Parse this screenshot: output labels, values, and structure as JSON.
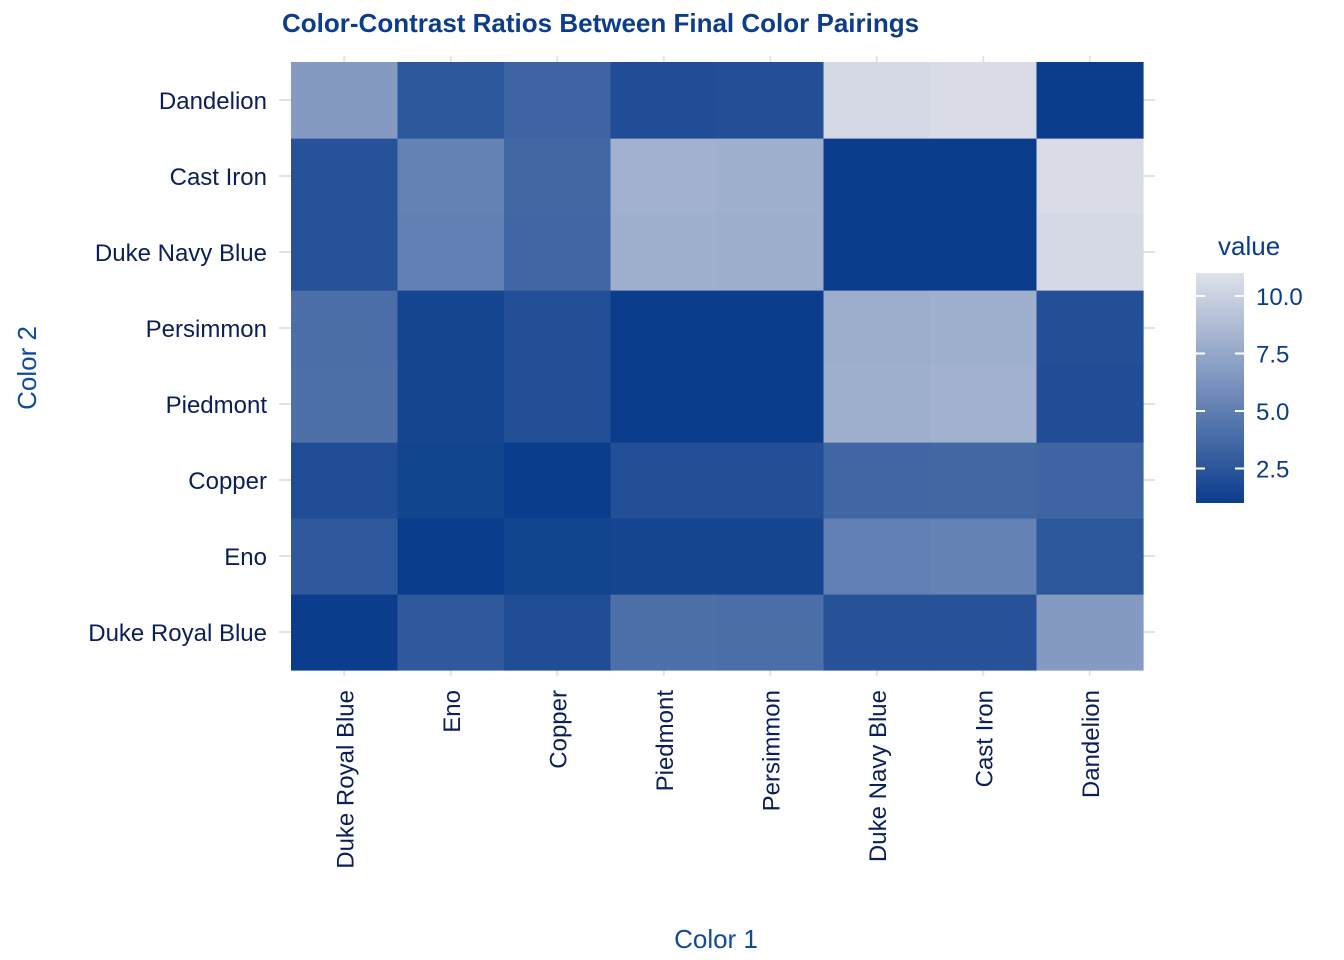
{
  "chart_data": {
    "type": "heatmap",
    "title": "Color-Contrast Ratios Between Final Color Pairings",
    "xlabel": "Color 1",
    "ylabel": "Color 2",
    "x_categories": [
      "Duke Royal Blue",
      "Eno",
      "Copper",
      "Piedmont",
      "Persimmon",
      "Duke Navy Blue",
      "Cast Iron",
      "Dandelion"
    ],
    "y_categories": [
      "Duke Royal Blue",
      "Eno",
      "Copper",
      "Piedmont",
      "Persimmon",
      "Duke Navy Blue",
      "Cast Iron",
      "Dandelion"
    ],
    "values": [
      [
        1.0,
        2.7,
        2.0,
        4.1,
        4.0,
        2.3,
        2.3,
        6.7
      ],
      [
        2.7,
        1.0,
        1.4,
        1.5,
        1.5,
        5.1,
        5.2,
        2.6
      ],
      [
        2.0,
        1.4,
        1.0,
        2.1,
        2.1,
        3.5,
        3.6,
        3.4
      ],
      [
        4.1,
        1.5,
        2.1,
        1.0,
        1.0,
        8.0,
        8.1,
        2.0
      ],
      [
        4.0,
        1.5,
        2.1,
        1.0,
        1.0,
        7.9,
        8.0,
        2.1
      ],
      [
        2.3,
        5.1,
        3.5,
        8.0,
        7.9,
        1.0,
        1.0,
        10.5
      ],
      [
        2.3,
        5.2,
        3.6,
        8.1,
        8.0,
        1.0,
        1.0,
        10.7
      ],
      [
        6.7,
        2.6,
        3.4,
        2.0,
        2.1,
        10.5,
        10.7,
        1.0
      ]
    ],
    "legend": {
      "title": "value",
      "ticks": [
        "2.5",
        "5.0",
        "7.5",
        "10.0"
      ],
      "tick_values": [
        2.5,
        5.0,
        7.5,
        10.0
      ],
      "min": 1.0,
      "max": 11.0,
      "low_color": "#0b3d8c",
      "high_color": "#dfe1ea"
    },
    "grid": true,
    "legend_placement": "right"
  }
}
